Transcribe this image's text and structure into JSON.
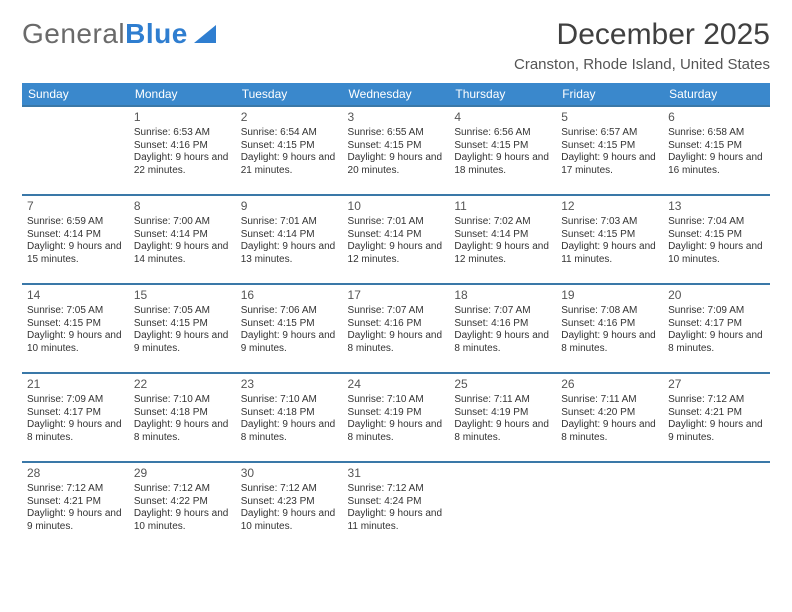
{
  "branding": {
    "logo_gray": "General",
    "logo_blue": "Blue"
  },
  "header": {
    "month_title": "December 2025",
    "location": "Cranston, Rhode Island, United States"
  },
  "calendar": {
    "day_headers": [
      "Sunday",
      "Monday",
      "Tuesday",
      "Wednesday",
      "Thursday",
      "Friday",
      "Saturday"
    ],
    "header_bg": "#3a88cc",
    "header_fg": "#ffffff",
    "rule_color": "#3a78a8",
    "weeks": [
      [
        {
          "n": "",
          "sr": "",
          "ss": "",
          "dl": ""
        },
        {
          "n": "1",
          "sr": "Sunrise: 6:53 AM",
          "ss": "Sunset: 4:16 PM",
          "dl": "Daylight: 9 hours and 22 minutes."
        },
        {
          "n": "2",
          "sr": "Sunrise: 6:54 AM",
          "ss": "Sunset: 4:15 PM",
          "dl": "Daylight: 9 hours and 21 minutes."
        },
        {
          "n": "3",
          "sr": "Sunrise: 6:55 AM",
          "ss": "Sunset: 4:15 PM",
          "dl": "Daylight: 9 hours and 20 minutes."
        },
        {
          "n": "4",
          "sr": "Sunrise: 6:56 AM",
          "ss": "Sunset: 4:15 PM",
          "dl": "Daylight: 9 hours and 18 minutes."
        },
        {
          "n": "5",
          "sr": "Sunrise: 6:57 AM",
          "ss": "Sunset: 4:15 PM",
          "dl": "Daylight: 9 hours and 17 minutes."
        },
        {
          "n": "6",
          "sr": "Sunrise: 6:58 AM",
          "ss": "Sunset: 4:15 PM",
          "dl": "Daylight: 9 hours and 16 minutes."
        }
      ],
      [
        {
          "n": "7",
          "sr": "Sunrise: 6:59 AM",
          "ss": "Sunset: 4:14 PM",
          "dl": "Daylight: 9 hours and 15 minutes."
        },
        {
          "n": "8",
          "sr": "Sunrise: 7:00 AM",
          "ss": "Sunset: 4:14 PM",
          "dl": "Daylight: 9 hours and 14 minutes."
        },
        {
          "n": "9",
          "sr": "Sunrise: 7:01 AM",
          "ss": "Sunset: 4:14 PM",
          "dl": "Daylight: 9 hours and 13 minutes."
        },
        {
          "n": "10",
          "sr": "Sunrise: 7:01 AM",
          "ss": "Sunset: 4:14 PM",
          "dl": "Daylight: 9 hours and 12 minutes."
        },
        {
          "n": "11",
          "sr": "Sunrise: 7:02 AM",
          "ss": "Sunset: 4:14 PM",
          "dl": "Daylight: 9 hours and 12 minutes."
        },
        {
          "n": "12",
          "sr": "Sunrise: 7:03 AM",
          "ss": "Sunset: 4:15 PM",
          "dl": "Daylight: 9 hours and 11 minutes."
        },
        {
          "n": "13",
          "sr": "Sunrise: 7:04 AM",
          "ss": "Sunset: 4:15 PM",
          "dl": "Daylight: 9 hours and 10 minutes."
        }
      ],
      [
        {
          "n": "14",
          "sr": "Sunrise: 7:05 AM",
          "ss": "Sunset: 4:15 PM",
          "dl": "Daylight: 9 hours and 10 minutes."
        },
        {
          "n": "15",
          "sr": "Sunrise: 7:05 AM",
          "ss": "Sunset: 4:15 PM",
          "dl": "Daylight: 9 hours and 9 minutes."
        },
        {
          "n": "16",
          "sr": "Sunrise: 7:06 AM",
          "ss": "Sunset: 4:15 PM",
          "dl": "Daylight: 9 hours and 9 minutes."
        },
        {
          "n": "17",
          "sr": "Sunrise: 7:07 AM",
          "ss": "Sunset: 4:16 PM",
          "dl": "Daylight: 9 hours and 8 minutes."
        },
        {
          "n": "18",
          "sr": "Sunrise: 7:07 AM",
          "ss": "Sunset: 4:16 PM",
          "dl": "Daylight: 9 hours and 8 minutes."
        },
        {
          "n": "19",
          "sr": "Sunrise: 7:08 AM",
          "ss": "Sunset: 4:16 PM",
          "dl": "Daylight: 9 hours and 8 minutes."
        },
        {
          "n": "20",
          "sr": "Sunrise: 7:09 AM",
          "ss": "Sunset: 4:17 PM",
          "dl": "Daylight: 9 hours and 8 minutes."
        }
      ],
      [
        {
          "n": "21",
          "sr": "Sunrise: 7:09 AM",
          "ss": "Sunset: 4:17 PM",
          "dl": "Daylight: 9 hours and 8 minutes."
        },
        {
          "n": "22",
          "sr": "Sunrise: 7:10 AM",
          "ss": "Sunset: 4:18 PM",
          "dl": "Daylight: 9 hours and 8 minutes."
        },
        {
          "n": "23",
          "sr": "Sunrise: 7:10 AM",
          "ss": "Sunset: 4:18 PM",
          "dl": "Daylight: 9 hours and 8 minutes."
        },
        {
          "n": "24",
          "sr": "Sunrise: 7:10 AM",
          "ss": "Sunset: 4:19 PM",
          "dl": "Daylight: 9 hours and 8 minutes."
        },
        {
          "n": "25",
          "sr": "Sunrise: 7:11 AM",
          "ss": "Sunset: 4:19 PM",
          "dl": "Daylight: 9 hours and 8 minutes."
        },
        {
          "n": "26",
          "sr": "Sunrise: 7:11 AM",
          "ss": "Sunset: 4:20 PM",
          "dl": "Daylight: 9 hours and 8 minutes."
        },
        {
          "n": "27",
          "sr": "Sunrise: 7:12 AM",
          "ss": "Sunset: 4:21 PM",
          "dl": "Daylight: 9 hours and 9 minutes."
        }
      ],
      [
        {
          "n": "28",
          "sr": "Sunrise: 7:12 AM",
          "ss": "Sunset: 4:21 PM",
          "dl": "Daylight: 9 hours and 9 minutes."
        },
        {
          "n": "29",
          "sr": "Sunrise: 7:12 AM",
          "ss": "Sunset: 4:22 PM",
          "dl": "Daylight: 9 hours and 10 minutes."
        },
        {
          "n": "30",
          "sr": "Sunrise: 7:12 AM",
          "ss": "Sunset: 4:23 PM",
          "dl": "Daylight: 9 hours and 10 minutes."
        },
        {
          "n": "31",
          "sr": "Sunrise: 7:12 AM",
          "ss": "Sunset: 4:24 PM",
          "dl": "Daylight: 9 hours and 11 minutes."
        },
        {
          "n": "",
          "sr": "",
          "ss": "",
          "dl": ""
        },
        {
          "n": "",
          "sr": "",
          "ss": "",
          "dl": ""
        },
        {
          "n": "",
          "sr": "",
          "ss": "",
          "dl": ""
        }
      ]
    ]
  }
}
